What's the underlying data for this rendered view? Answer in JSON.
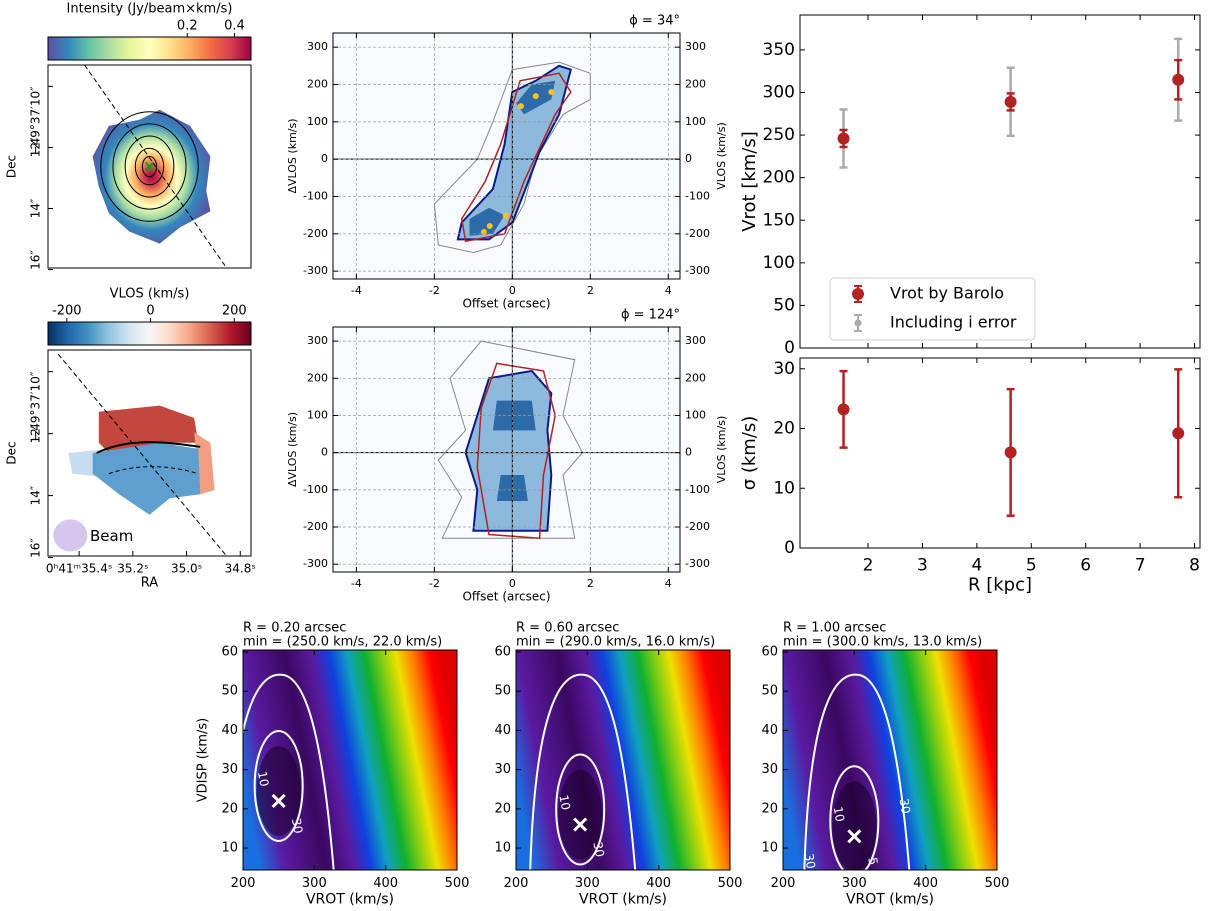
{
  "chart_data": [
    {
      "type": "image",
      "colorbar_label": "Intensity (Jy/beam×km/s)",
      "colormap": "Spectral_r",
      "clim": [
        -0.39,
        0.47
      ],
      "colorbar_ticks": [
        0.2,
        0.4
      ],
      "ylabel": "Dec",
      "ylim": [
        15.95,
        9.3
      ],
      "yticks": [
        {
          "value": 10,
          "label": "−49°37′10″"
        },
        {
          "value": 12,
          "label": "12″"
        },
        {
          "value": 14,
          "label": "14″"
        },
        {
          "value": 16,
          "label": "16″"
        }
      ]
    },
    {
      "type": "image",
      "colorbar_label": "VLOS (km/s)",
      "colormap": "RdBu_r",
      "clim": [
        -245,
        240
      ],
      "colorbar_ticks": [
        -200,
        0,
        200
      ],
      "xlabel": "RA",
      "xlim": [
        35.516,
        34.76
      ],
      "xticks": [
        {
          "value": 35.4,
          "label": "0ʰ41ᵐ35.4ˢ"
        },
        {
          "value": 35.2,
          "label": "35.2ˢ"
        },
        {
          "value": 35.0,
          "label": "35.0ˢ"
        },
        {
          "value": 34.8,
          "label": "34.8ˢ"
        }
      ],
      "ylabel": "Dec",
      "ylim": [
        15.95,
        9.3
      ],
      "yticks": [
        {
          "value": 10,
          "label": "−49°37′10″"
        },
        {
          "value": 12,
          "label": "12″"
        },
        {
          "value": 14,
          "label": "14″"
        },
        {
          "value": 16,
          "label": "16″"
        }
      ],
      "annotation": "Beam"
    },
    {
      "type": "heatmap",
      "colormap": "Blues",
      "title": "ϕ = 34°",
      "xlabel": "Offset (arcsec)",
      "ylabel": "ΔVLOS (km/s)",
      "y2label": "VLOS (km/s)",
      "xlim": [
        -4.6,
        4.3
      ],
      "xticks": [
        -4,
        -2,
        0,
        2,
        4
      ],
      "ylim": [
        -321,
        338
      ],
      "yticks": [
        -300,
        -200,
        -100,
        0,
        100,
        200,
        300
      ],
      "y2lim": [
        -321,
        338
      ],
      "y2ticks": [
        -300,
        -200,
        -100,
        0,
        100,
        200,
        300
      ],
      "grid": true,
      "series": [
        {
          "color": "#f5c518",
          "x": [
            -0.73,
            -0.58,
            -0.17,
            0.22,
            0.6,
            1.0
          ],
          "values": [
            -195,
            -179,
            -152,
            142,
            169,
            180
          ]
        }
      ]
    },
    {
      "type": "heatmap",
      "colormap": "Blues",
      "title": "ϕ = 124°",
      "xlabel": "Offset (arcsec)",
      "ylabel": "ΔVLOS (km/s)",
      "y2label": "VLOS (km/s)",
      "xlim": [
        -4.6,
        4.3
      ],
      "xticks": [
        -4,
        -2,
        0,
        2,
        4
      ],
      "ylim": [
        -321,
        338
      ],
      "yticks": [
        -300,
        -200,
        -100,
        0,
        100,
        200,
        300
      ],
      "y2lim": [
        -321,
        338
      ],
      "y2ticks": [
        -300,
        -200,
        -100,
        0,
        100,
        200,
        300
      ],
      "grid": true
    },
    {
      "type": "scatter",
      "ylabel": "Vrot [km/s]",
      "xlim": [
        0.75,
        8.1
      ],
      "xticks": [
        2,
        3,
        4,
        5,
        6,
        7,
        8
      ],
      "ylim": [
        0,
        391
      ],
      "yticks": [
        0,
        50,
        100,
        150,
        200,
        250,
        300,
        350
      ],
      "x": [
        1.55,
        4.62,
        7.7
      ],
      "legend": "lower left",
      "series": [
        {
          "name": "Vrot by Barolo",
          "color": "#b22222",
          "values": [
            246,
            289,
            315
          ],
          "errors": [
            10,
            10,
            23
          ]
        },
        {
          "name": "Including i error",
          "color": "#aaaaaa",
          "values": [
            246,
            289,
            315
          ],
          "errors": [
            34,
            40,
            48
          ]
        }
      ]
    },
    {
      "type": "scatter",
      "xlabel": "R  [kpc]",
      "ylabel": "σ (km/s)",
      "xlim": [
        0.75,
        8.1
      ],
      "xticks": [
        2,
        3,
        4,
        5,
        6,
        7,
        8
      ],
      "ylim": [
        0,
        31.8
      ],
      "yticks": [
        0,
        10,
        20,
        30
      ],
      "x": [
        1.55,
        4.62,
        7.7
      ],
      "series": [
        {
          "color": "#b22222",
          "values": [
            23.2,
            16.0,
            19.2
          ],
          "errors": [
            6.4,
            10.6,
            10.7
          ]
        }
      ]
    },
    {
      "type": "heatmap",
      "colormap": "nipy_spectral",
      "title": "R = 0.20 arcsec",
      "subtitle": "min = (250.0 km/s, 22.0 km/s)",
      "xlabel": "VROT (km/s)",
      "ylabel": "VDISP (km/s)",
      "xlim": [
        200,
        500
      ],
      "xticks": [
        200,
        300,
        400,
        500
      ],
      "ylim": [
        4.4,
        60.5
      ],
      "yticks": [
        10,
        20,
        30,
        40,
        50,
        60
      ],
      "min": {
        "x": 250,
        "y": 22
      },
      "contour_labels": [
        "10",
        "30"
      ]
    },
    {
      "type": "heatmap",
      "colormap": "nipy_spectral",
      "title": "R = 0.60 arcsec",
      "subtitle": "min = (290.0 km/s, 16.0 km/s)",
      "xlabel": "VROT (km/s)",
      "xlim": [
        200,
        500
      ],
      "xticks": [
        200,
        300,
        400,
        500
      ],
      "ylim": [
        4.4,
        60.5
      ],
      "yticks": [
        10,
        20,
        30,
        40,
        50,
        60
      ],
      "min": {
        "x": 290,
        "y": 16
      },
      "contour_labels": [
        "10",
        "30"
      ]
    },
    {
      "type": "heatmap",
      "colormap": "nipy_spectral",
      "title": "R = 1.00 arcsec",
      "subtitle": "min = (300.0 km/s, 13.0 km/s)",
      "xlabel": "VROT (km/s)",
      "xlim": [
        200,
        500
      ],
      "xticks": [
        200,
        300,
        400,
        500
      ],
      "ylim": [
        4.4,
        60.5
      ],
      "yticks": [
        10,
        20,
        30,
        40,
        50,
        60
      ],
      "min": {
        "x": 300,
        "y": 13
      },
      "contour_labels": [
        "10",
        "5",
        "30",
        "30"
      ]
    }
  ]
}
